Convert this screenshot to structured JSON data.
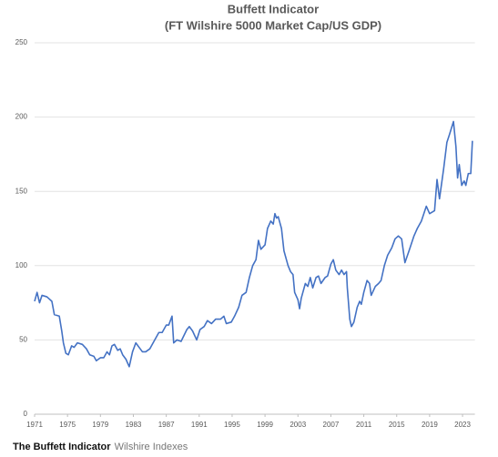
{
  "chart_data": {
    "type": "line",
    "title": "Buffett Indicator",
    "subtitle": "(FT Wilshire 5000 Market Cap/US GDP)",
    "x": [
      1971.0,
      1971.3,
      1971.6,
      1971.9,
      1972.5,
      1973.1,
      1973.4,
      1974.0,
      1974.3,
      1974.5,
      1974.8,
      1975.1,
      1975.5,
      1975.8,
      1976.2,
      1976.8,
      1977.3,
      1977.7,
      1978.2,
      1978.5,
      1979.0,
      1979.4,
      1979.8,
      1980.1,
      1980.4,
      1980.7,
      1981.1,
      1981.4,
      1981.7,
      1982.1,
      1982.5,
      1982.9,
      1983.3,
      1983.7,
      1984.1,
      1984.5,
      1985.0,
      1985.6,
      1986.1,
      1986.5,
      1987.0,
      1987.3,
      1987.7,
      1987.9,
      1988.3,
      1988.8,
      1989.5,
      1989.8,
      1990.2,
      1990.7,
      1991.1,
      1991.6,
      1992.0,
      1992.5,
      1993.0,
      1993.6,
      1994.0,
      1994.3,
      1994.9,
      1995.3,
      1995.8,
      1996.2,
      1996.7,
      1997.1,
      1997.5,
      1997.9,
      1998.2,
      1998.5,
      1999.0,
      1999.3,
      1999.7,
      2000.0,
      2000.2,
      2000.4,
      2000.6,
      2001.0,
      2001.3,
      2001.8,
      2002.1,
      2002.4,
      2002.6,
      2003.0,
      2003.2,
      2003.4,
      2003.9,
      2004.2,
      2004.5,
      2004.8,
      2005.2,
      2005.5,
      2005.8,
      2006.3,
      2006.6,
      2007.0,
      2007.3,
      2007.6,
      2008.0,
      2008.3,
      2008.6,
      2008.9,
      2009.0,
      2009.3,
      2009.5,
      2009.8,
      2010.2,
      2010.5,
      2010.7,
      2011.0,
      2011.4,
      2011.7,
      2011.9,
      2012.4,
      2012.8,
      2013.1,
      2013.5,
      2013.9,
      2014.4,
      2014.8,
      2015.2,
      2015.6,
      2016.0,
      2016.5,
      2017.1,
      2017.5,
      2018.0,
      2018.6,
      2019.0,
      2019.6,
      2019.9,
      2020.2,
      2020.7,
      2021.1,
      2021.4,
      2021.9,
      2022.2,
      2022.4,
      2022.6,
      2022.9,
      2023.2,
      2023.4,
      2023.7,
      2024.0,
      2024.2
    ],
    "series": [
      {
        "name": "Buffett Indicator",
        "color": "#4472c4",
        "values": [
          76,
          82,
          75,
          80,
          79,
          76,
          67,
          66,
          56,
          48,
          41,
          40,
          46,
          45,
          48,
          47,
          44,
          40,
          39,
          36,
          38,
          38,
          42,
          40,
          46,
          47,
          43,
          44,
          40,
          37,
          32,
          42,
          48,
          45,
          42,
          42,
          44,
          50,
          55,
          55,
          60,
          60,
          66,
          48,
          50,
          49,
          57,
          59,
          56,
          50,
          57,
          59,
          63,
          61,
          64,
          64,
          66,
          61,
          62,
          66,
          72,
          80,
          82,
          92,
          100,
          104,
          117,
          111,
          114,
          125,
          130,
          128,
          135,
          132,
          133,
          125,
          110,
          100,
          96,
          94,
          82,
          77,
          71,
          78,
          88,
          86,
          92,
          85,
          92,
          93,
          88,
          92,
          93,
          101,
          104,
          97,
          94,
          97,
          94,
          96,
          85,
          64,
          59,
          62,
          72,
          76,
          74,
          82,
          90,
          88,
          80,
          86,
          88,
          90,
          100,
          107,
          112,
          118,
          120,
          118,
          102,
          110,
          120,
          125,
          130,
          140,
          135,
          137,
          158,
          145,
          165,
          183,
          188,
          197,
          180,
          159,
          168,
          154,
          157,
          154,
          162,
          162,
          184
        ]
      }
    ],
    "xlim": [
      1971,
      2024.5
    ],
    "xticks": [
      1971,
      1975,
      1979,
      1983,
      1987,
      1991,
      1995,
      1999,
      2003,
      2007,
      2011,
      2015,
      2019,
      2023
    ],
    "ylim": [
      0,
      250
    ],
    "yticks": [
      0,
      50,
      100,
      150,
      200,
      250
    ],
    "grid": true,
    "caption": "The Buffett Indicator",
    "credit": "Wilshire Indexes"
  }
}
